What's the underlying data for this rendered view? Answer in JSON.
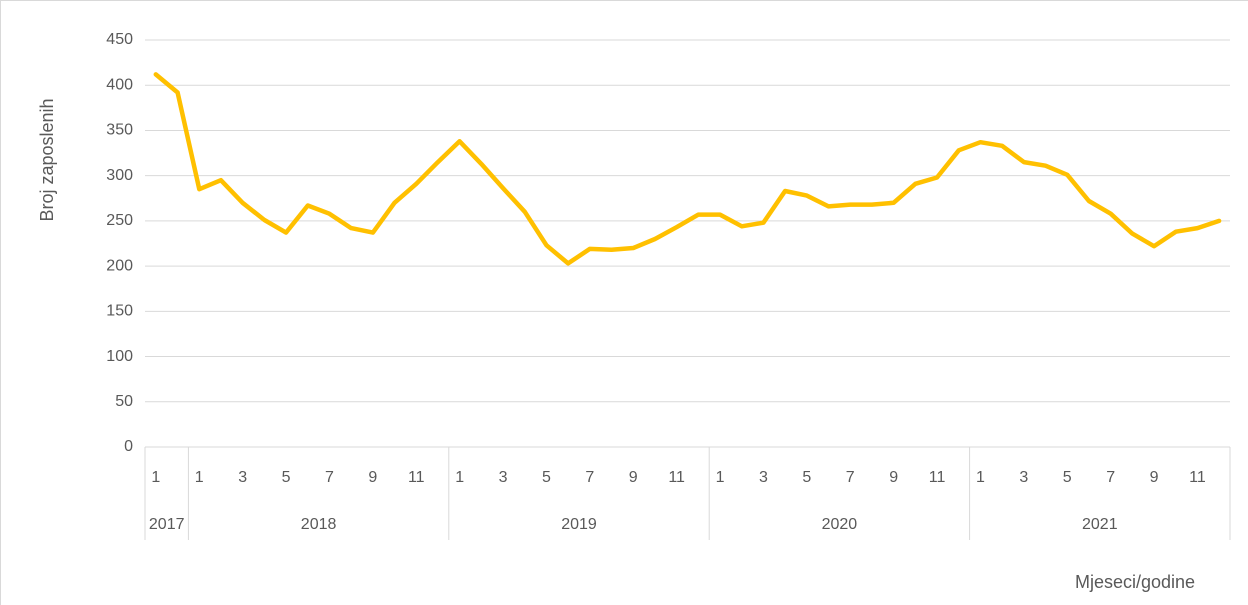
{
  "chart_data": {
    "type": "line",
    "y_label": "Broj zaposlenih",
    "x_label": "Mjeseci/godine",
    "categories": [
      "1",
      null,
      "1",
      null,
      "3",
      null,
      "5",
      null,
      "7",
      null,
      "9",
      null,
      "11",
      null,
      "1",
      null,
      "3",
      null,
      "5",
      null,
      "7",
      null,
      "9",
      null,
      "11",
      null,
      "1",
      null,
      "3",
      null,
      "5",
      null,
      "7",
      null,
      "9",
      null,
      "11",
      null,
      "1",
      null,
      "3",
      null,
      "5",
      null,
      "7",
      null,
      "9",
      null,
      "11",
      null
    ],
    "groups": [
      "2017",
      "2018",
      "2019",
      "2020",
      "2021"
    ],
    "group_sizes": [
      2,
      12,
      12,
      12,
      12
    ],
    "series": [
      {
        "name": "Broj zaposlenih",
        "color": "#ffc000",
        "values": [
          412,
          392,
          285,
          295,
          270,
          251,
          237,
          267,
          258,
          242,
          237,
          270,
          291,
          315,
          338,
          313,
          286,
          260,
          223,
          203,
          219,
          218,
          220,
          230,
          243,
          257,
          257,
          244,
          248,
          283,
          278,
          266,
          268,
          268,
          270,
          291,
          298,
          328,
          337,
          333,
          315,
          311,
          301,
          272,
          258,
          236,
          222,
          238,
          242,
          250
        ]
      }
    ],
    "ylim": [
      0,
      450
    ],
    "yticks": [
      0,
      50,
      100,
      150,
      200,
      250,
      300,
      350,
      400,
      450
    ],
    "grid": true
  }
}
